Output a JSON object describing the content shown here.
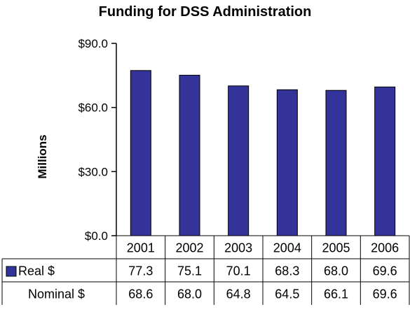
{
  "chart_data": {
    "type": "bar",
    "title": "Funding for DSS Administration",
    "ylabel": "Millions",
    "ylim": [
      0,
      90
    ],
    "yticks": [
      "$90.0",
      "$60.0",
      "$30.0",
      "$0.0"
    ],
    "ytick_values": [
      90,
      60,
      30,
      0
    ],
    "categories": [
      "2001",
      "2002",
      "2003",
      "2004",
      "2005",
      "2006"
    ],
    "grid": false,
    "bar_color": "#333399",
    "series": [
      {
        "name": "Real $",
        "plotted": true,
        "values": [
          77.3,
          75.1,
          70.1,
          68.3,
          68.0,
          69.6
        ],
        "labels": [
          "77.3",
          "75.1",
          "70.1",
          "68.3",
          "68.0",
          "69.6"
        ]
      },
      {
        "name": "Nominal $",
        "plotted": false,
        "values": [
          68.6,
          68.0,
          64.8,
          64.5,
          66.1,
          69.6
        ],
        "labels": [
          "68.6",
          "68.0",
          "64.8",
          "64.5",
          "66.1",
          "69.6"
        ]
      }
    ]
  }
}
